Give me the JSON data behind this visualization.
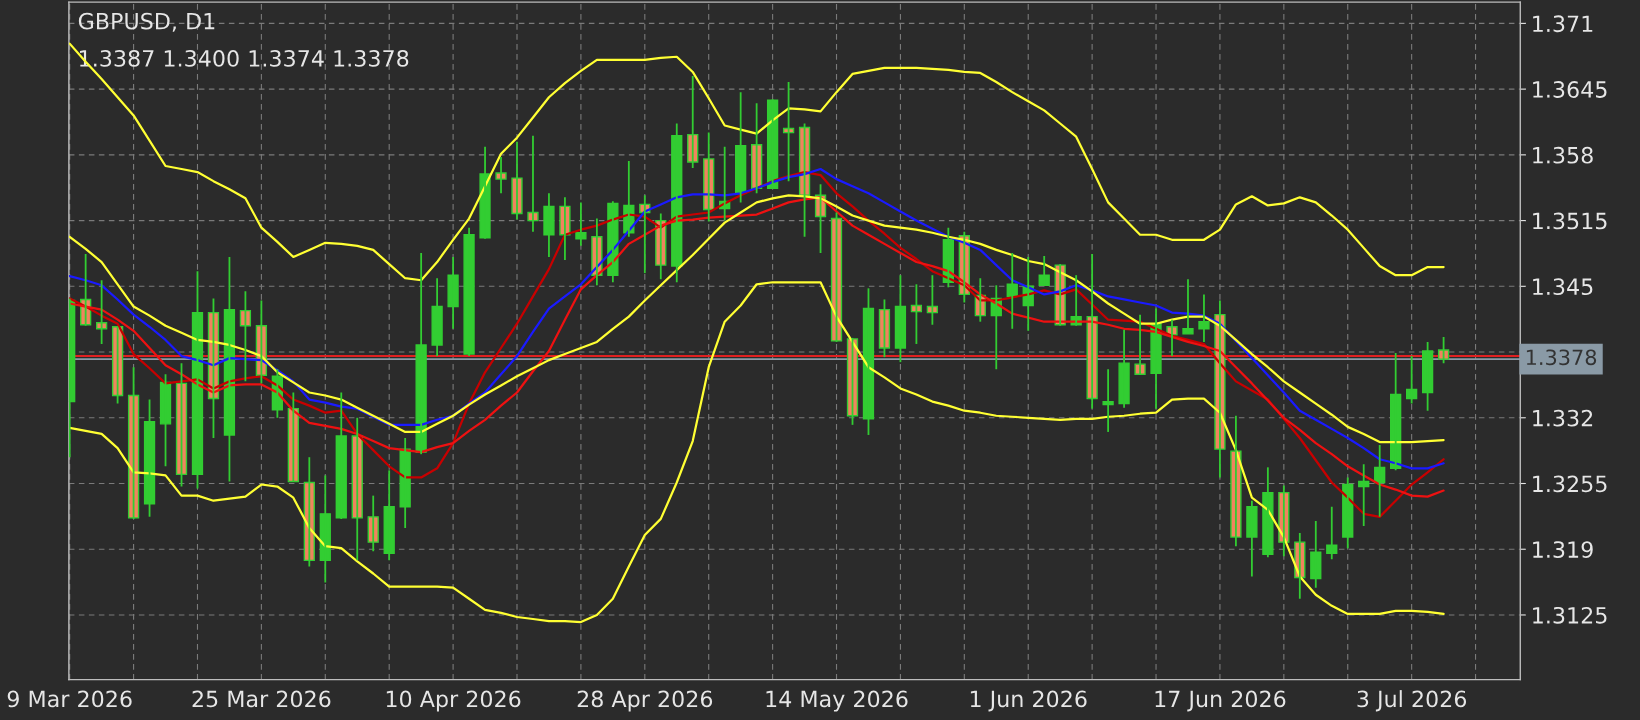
{
  "chart_data": {
    "type": "candlestick",
    "title": "GBPUSD, D1",
    "subtitle": "1.3387 1.3400 1.3374 1.3378",
    "categories": [
      "9 Mar 2026",
      null,
      null,
      null,
      null,
      null,
      null,
      null,
      null,
      null,
      null,
      null,
      "25 Mar 2026",
      null,
      null,
      null,
      null,
      null,
      null,
      null,
      null,
      null,
      null,
      null,
      "10 Apr 2026",
      null,
      null,
      null,
      null,
      null,
      null,
      null,
      null,
      null,
      null,
      null,
      "28 Apr 2026",
      null,
      null,
      null,
      null,
      null,
      null,
      null,
      null,
      null,
      null,
      null,
      "14 May 2026",
      null,
      null,
      null,
      null,
      null,
      null,
      null,
      null,
      null,
      null,
      null,
      "1 Jun 2026",
      null,
      null,
      null,
      null,
      null,
      null,
      null,
      null,
      null,
      null,
      null,
      "17 Jun 2026",
      null,
      null,
      null,
      null,
      null,
      null,
      null,
      null,
      null,
      null,
      null,
      "3 Jul 2026",
      null,
      null
    ],
    "ohlc": [
      [
        1.3336,
        1.3438,
        1.3281,
        1.3436
      ],
      [
        1.3437,
        1.3482,
        1.3411,
        1.3412
      ],
      [
        1.3414,
        1.3456,
        1.3393,
        1.3408
      ],
      [
        1.341,
        1.341,
        1.3334,
        1.3342
      ],
      [
        1.3342,
        1.337,
        1.322,
        1.3221
      ],
      [
        1.3235,
        1.3338,
        1.3222,
        1.3316
      ],
      [
        1.3314,
        1.3363,
        1.3272,
        1.3355
      ],
      [
        1.3354,
        1.3374,
        1.3252,
        1.3264
      ],
      [
        1.3264,
        1.3465,
        1.325,
        1.3424
      ],
      [
        1.3424,
        1.3438,
        1.33,
        1.3339
      ],
      [
        1.3303,
        1.3479,
        1.3257,
        1.3427
      ],
      [
        1.3426,
        1.3445,
        1.3356,
        1.3411
      ],
      [
        1.3411,
        1.3436,
        1.3354,
        1.3362
      ],
      [
        1.3328,
        1.3368,
        1.332,
        1.3361
      ],
      [
        1.3329,
        1.3345,
        1.3257,
        1.3257
      ],
      [
        1.3256,
        1.3281,
        1.3173,
        1.3179
      ],
      [
        1.3179,
        1.3263,
        1.3157,
        1.3225
      ],
      [
        1.3221,
        1.3345,
        1.322,
        1.3302
      ],
      [
        1.3302,
        1.332,
        1.3179,
        1.3221
      ],
      [
        1.3222,
        1.3243,
        1.3188,
        1.3197
      ],
      [
        1.3186,
        1.3268,
        1.3179,
        1.3232
      ],
      [
        1.3232,
        1.33,
        1.3211,
        1.3289
      ],
      [
        1.3286,
        1.3483,
        1.3284,
        1.3392
      ],
      [
        1.3392,
        1.3458,
        1.3381,
        1.343
      ],
      [
        1.343,
        1.3479,
        1.3408,
        1.3461
      ],
      [
        1.3383,
        1.3508,
        1.3381,
        1.3501
      ],
      [
        1.3498,
        1.3588,
        1.3497,
        1.3561
      ],
      [
        1.3562,
        1.3578,
        1.3542,
        1.3556
      ],
      [
        1.3557,
        1.3593,
        1.3516,
        1.3522
      ],
      [
        1.3523,
        1.3599,
        1.3504,
        1.3515
      ],
      [
        1.3501,
        1.3542,
        1.3479,
        1.3529
      ],
      [
        1.3529,
        1.3538,
        1.3476,
        1.3501
      ],
      [
        1.3497,
        1.3533,
        1.349,
        1.3503
      ],
      [
        1.3499,
        1.3517,
        1.3451,
        1.3461
      ],
      [
        1.3461,
        1.3534,
        1.3454,
        1.3532
      ],
      [
        1.3503,
        1.3574,
        1.3499,
        1.353
      ],
      [
        1.3531,
        1.354,
        1.3463,
        1.3523
      ],
      [
        1.3515,
        1.3522,
        1.3457,
        1.3471
      ],
      [
        1.347,
        1.3611,
        1.3454,
        1.3599
      ],
      [
        1.36,
        1.3658,
        1.3567,
        1.3573
      ],
      [
        1.3576,
        1.3602,
        1.3514,
        1.3526
      ],
      [
        1.3527,
        1.3588,
        1.3515,
        1.3534
      ],
      [
        1.3542,
        1.3642,
        1.3533,
        1.3589
      ],
      [
        1.359,
        1.3631,
        1.3542,
        1.3547
      ],
      [
        1.3547,
        1.3635,
        1.3547,
        1.3634
      ],
      [
        1.3606,
        1.3652,
        1.3554,
        1.3602
      ],
      [
        1.3607,
        1.3611,
        1.3499,
        1.354
      ],
      [
        1.354,
        1.3551,
        1.3483,
        1.3519
      ],
      [
        1.3517,
        1.3523,
        1.3395,
        1.3396
      ],
      [
        1.3398,
        1.3399,
        1.3313,
        1.3322
      ],
      [
        1.3319,
        1.3448,
        1.3303,
        1.3428
      ],
      [
        1.3427,
        1.3437,
        1.338,
        1.3389
      ],
      [
        1.3389,
        1.3461,
        1.3375,
        1.343
      ],
      [
        1.3431,
        1.3452,
        1.3393,
        1.3425
      ],
      [
        1.343,
        1.3461,
        1.3412,
        1.3424
      ],
      [
        1.3454,
        1.3508,
        1.3449,
        1.3496
      ],
      [
        1.35,
        1.3504,
        1.3434,
        1.3442
      ],
      [
        1.3441,
        1.3458,
        1.3415,
        1.3421
      ],
      [
        1.3421,
        1.3451,
        1.3368,
        1.3438
      ],
      [
        1.344,
        1.3483,
        1.3408,
        1.3452
      ],
      [
        1.3431,
        1.3479,
        1.3406,
        1.345
      ],
      [
        1.3451,
        1.348,
        1.3451,
        1.3461
      ],
      [
        1.3471,
        1.3472,
        1.3411,
        1.3412
      ],
      [
        1.3412,
        1.3461,
        1.3411,
        1.342
      ],
      [
        1.342,
        1.3482,
        1.3329,
        1.3339
      ],
      [
        1.3333,
        1.3368,
        1.3306,
        1.3336
      ],
      [
        1.3334,
        1.3407,
        1.333,
        1.3374
      ],
      [
        1.3373,
        1.3422,
        1.3363,
        1.3363
      ],
      [
        1.3364,
        1.3428,
        1.3329,
        1.3413
      ],
      [
        1.341,
        1.3417,
        1.3381,
        1.3402
      ],
      [
        1.3403,
        1.3457,
        1.3403,
        1.3408
      ],
      [
        1.3408,
        1.3442,
        1.3395,
        1.3415
      ],
      [
        1.3422,
        1.3436,
        1.3261,
        1.3289
      ],
      [
        1.3287,
        1.3322,
        1.3193,
        1.3202
      ],
      [
        1.3202,
        1.3238,
        1.3163,
        1.3232
      ],
      [
        1.3185,
        1.3271,
        1.3182,
        1.3246
      ],
      [
        1.3246,
        1.3253,
        1.3183,
        1.3197
      ],
      [
        1.3197,
        1.3206,
        1.3141,
        1.3162
      ],
      [
        1.3161,
        1.3218,
        1.3152,
        1.3187
      ],
      [
        1.3186,
        1.3232,
        1.318,
        1.3194
      ],
      [
        1.3202,
        1.3261,
        1.3191,
        1.3254
      ],
      [
        1.3252,
        1.3274,
        1.3213,
        1.3257
      ],
      [
        1.3256,
        1.3293,
        1.3222,
        1.3271
      ],
      [
        1.327,
        1.3384,
        1.3268,
        1.3343
      ],
      [
        1.3339,
        1.3381,
        1.3334,
        1.3348
      ],
      [
        1.3345,
        1.3395,
        1.3327,
        1.3386
      ],
      [
        1.3387,
        1.34,
        1.3374,
        1.3378
      ]
    ],
    "colors": [
      "#32cd32",
      "#f0845e",
      "#f0845e",
      "#f0845e",
      "#f0845e",
      "#32cd32",
      "#32cd32",
      "#f0845e",
      "#32cd32",
      "#f0845e",
      "#32cd32",
      "#f0845e",
      "#f0845e",
      "#32cd32",
      "#f0845e",
      "#f0845e",
      "#32cd32",
      "#32cd32",
      "#f0845e",
      "#f0845e",
      "#32cd32",
      "#32cd32",
      "#32cd32",
      "#32cd32",
      "#32cd32",
      "#32cd32",
      "#32cd32",
      "#f0845e",
      "#f0845e",
      "#f0845e",
      "#32cd32",
      "#f0845e",
      "#32cd32",
      "#f0845e",
      "#32cd32",
      "#32cd32",
      "#f0845e",
      "#f0845e",
      "#32cd32",
      "#f0845e",
      "#f0845e",
      "#32cd32",
      "#32cd32",
      "#f0845e",
      "#32cd32",
      "#f0845e",
      "#f0845e",
      "#f0845e",
      "#f0845e",
      "#f0845e",
      "#32cd32",
      "#f0845e",
      "#32cd32",
      "#f0845e",
      "#f0845e",
      "#32cd32",
      "#f0845e",
      "#f0845e",
      "#32cd32",
      "#32cd32",
      "#32cd32",
      "#32cd32",
      "#f0845e",
      "#32cd32",
      "#f0845e",
      "#32cd32",
      "#32cd32",
      "#f0845e",
      "#32cd32",
      "#f0845e",
      "#32cd32",
      "#32cd32",
      "#f0845e",
      "#f0845e",
      "#32cd32",
      "#32cd32",
      "#f0845e",
      "#f0845e",
      "#32cd32",
      "#32cd32",
      "#32cd32",
      "#32cd32",
      "#32cd32",
      "#32cd32",
      "#32cd32",
      "#32cd32",
      "#f0845e"
    ],
    "series": [
      {
        "type": "line",
        "color": "#ffff33",
        "values": [
          1.369,
          1.3672,
          1.3655,
          1.3637,
          1.3619,
          1.3594,
          1.3569,
          1.3566,
          1.3563,
          1.3554,
          1.3546,
          1.3537,
          1.3508,
          1.3494,
          1.3479,
          1.3486,
          1.3493,
          1.3492,
          1.349,
          1.3486,
          1.3472,
          1.3458,
          1.3456,
          1.3474,
          1.3496,
          1.3517,
          1.3549,
          1.3581,
          1.3597,
          1.3617,
          1.3637,
          1.3651,
          1.3663,
          1.3674,
          1.3674,
          1.3674,
          1.3674,
          1.3676,
          1.3677,
          1.3662,
          1.3636,
          1.3609,
          1.3605,
          1.3601,
          1.3614,
          1.3626,
          1.3625,
          1.3623,
          1.3642,
          1.366,
          1.3663,
          1.3666,
          1.3666,
          1.3666,
          1.3665,
          1.3664,
          1.3662,
          1.3661,
          1.3652,
          1.3642,
          1.3633,
          1.3624,
          1.3611,
          1.3598,
          1.3566,
          1.3533,
          1.3517,
          1.3501,
          1.3501,
          1.3496,
          1.3496,
          1.3496,
          1.3506,
          1.3531,
          1.3539,
          1.353,
          1.3532,
          1.3538,
          1.3533,
          1.352,
          1.3506,
          1.3488,
          1.347,
          1.3461,
          1.3461,
          1.3469,
          1.3469
        ]
      },
      {
        "type": "line",
        "color": "#ffff33",
        "values": [
          1.3499,
          1.3487,
          1.3474,
          1.3452,
          1.343,
          1.3421,
          1.3411,
          1.3404,
          1.3397,
          1.3395,
          1.3392,
          1.3387,
          1.3381,
          1.3365,
          1.3355,
          1.3345,
          1.3342,
          1.3338,
          1.333,
          1.3322,
          1.3314,
          1.3306,
          1.3306,
          1.3314,
          1.3322,
          1.3333,
          1.3343,
          1.3352,
          1.3361,
          1.3369,
          1.3377,
          1.3383,
          1.3389,
          1.3395,
          1.3408,
          1.342,
          1.3436,
          1.3451,
          1.3466,
          1.3481,
          1.3497,
          1.3513,
          1.3523,
          1.3533,
          1.3537,
          1.354,
          1.3539,
          1.3537,
          1.3529,
          1.352,
          1.3515,
          1.351,
          1.3508,
          1.3506,
          1.3503,
          1.3499,
          1.3496,
          1.3492,
          1.3486,
          1.3481,
          1.3475,
          1.3472,
          1.3464,
          1.3456,
          1.3445,
          1.3433,
          1.3423,
          1.3413,
          1.3413,
          1.3417,
          1.342,
          1.342,
          1.3411,
          1.3397,
          1.3383,
          1.337,
          1.3356,
          1.3345,
          1.3334,
          1.3323,
          1.3311,
          1.3304,
          1.3296,
          1.3296,
          1.3296,
          1.3297,
          1.3298
        ]
      },
      {
        "type": "line",
        "color": "#ffff33",
        "values": [
          1.331,
          1.3307,
          1.3304,
          1.329,
          1.3266,
          1.3265,
          1.3263,
          1.3243,
          1.3243,
          1.3238,
          1.324,
          1.3242,
          1.3254,
          1.3252,
          1.3241,
          1.3211,
          1.3193,
          1.3191,
          1.3178,
          1.3166,
          1.3153,
          1.3153,
          1.3153,
          1.3153,
          1.3152,
          1.3141,
          1.313,
          1.3127,
          1.3123,
          1.3121,
          1.3119,
          1.3119,
          1.3118,
          1.3125,
          1.3141,
          1.3173,
          1.3204,
          1.322,
          1.3256,
          1.3297,
          1.337,
          1.3415,
          1.3431,
          1.3452,
          1.3454,
          1.3454,
          1.3454,
          1.3454,
          1.342,
          1.3395,
          1.337,
          1.336,
          1.3349,
          1.3343,
          1.3336,
          1.3332,
          1.3327,
          1.3325,
          1.3322,
          1.3321,
          1.332,
          1.3319,
          1.3318,
          1.3319,
          1.3319,
          1.3321,
          1.3322,
          1.3324,
          1.3325,
          1.3338,
          1.3339,
          1.3339,
          1.3325,
          1.3288,
          1.3241,
          1.3229,
          1.3202,
          1.3163,
          1.3145,
          1.3134,
          1.3126,
          1.3126,
          1.3126,
          1.3129,
          1.3129,
          1.3128,
          1.3126
        ]
      },
      {
        "type": "line",
        "color": "#1a1aff",
        "values": [
          1.346,
          1.3456,
          1.3451,
          1.3437,
          1.3422,
          1.341,
          1.3397,
          1.3381,
          1.3377,
          1.3372,
          1.3379,
          1.3378,
          1.3377,
          1.3367,
          1.3356,
          1.3338,
          1.3335,
          1.3331,
          1.3329,
          1.3321,
          1.3313,
          1.3313,
          1.3313,
          1.3318,
          1.3322,
          1.3334,
          1.3345,
          1.3363,
          1.3381,
          1.3405,
          1.3428,
          1.344,
          1.3452,
          1.3469,
          1.3486,
          1.3505,
          1.3524,
          1.3531,
          1.3538,
          1.3541,
          1.3541,
          1.354,
          1.3542,
          1.3547,
          1.3553,
          1.3558,
          1.3561,
          1.3566,
          1.3556,
          1.3549,
          1.3542,
          1.3533,
          1.3524,
          1.3515,
          1.3507,
          1.3499,
          1.3493,
          1.3486,
          1.3471,
          1.3456,
          1.3449,
          1.3442,
          1.3445,
          1.3451,
          1.3446,
          1.344,
          1.3437,
          1.3434,
          1.3431,
          1.3424,
          1.3423,
          1.3421,
          1.3413,
          1.3396,
          1.3379,
          1.3362,
          1.3345,
          1.3327,
          1.3318,
          1.3309,
          1.33,
          1.329,
          1.3279,
          1.3275,
          1.327,
          1.327,
          1.3275
        ]
      },
      {
        "type": "line",
        "color": "#ee1111",
        "values": [
          1.3433,
          1.343,
          1.3427,
          1.3417,
          1.3406,
          1.3389,
          1.3372,
          1.3363,
          1.3353,
          1.3345,
          1.3352,
          1.3353,
          1.3353,
          1.3345,
          1.3327,
          1.3315,
          1.3312,
          1.3309,
          1.3304,
          1.3297,
          1.329,
          1.3288,
          1.3286,
          1.3291,
          1.3295,
          1.3307,
          1.3318,
          1.3332,
          1.3345,
          1.3366,
          1.3386,
          1.3417,
          1.3447,
          1.3461,
          1.3474,
          1.3492,
          1.3501,
          1.351,
          1.3515,
          1.3516,
          1.3518,
          1.3519,
          1.352,
          1.3521,
          1.3527,
          1.3533,
          1.3536,
          1.3538,
          1.3524,
          1.351,
          1.3501,
          1.3492,
          1.3483,
          1.3474,
          1.347,
          1.3465,
          1.3454,
          1.3442,
          1.3433,
          1.3423,
          1.3419,
          1.3415,
          1.3415,
          1.3415,
          1.3415,
          1.3412,
          1.3408,
          1.3407,
          1.3405,
          1.34,
          1.3395,
          1.3391,
          1.3386,
          1.337,
          1.3354,
          1.3337,
          1.332,
          1.3308,
          1.3295,
          1.3284,
          1.3272,
          1.3263,
          1.3254,
          1.3249,
          1.3243,
          1.3242,
          1.3248
        ]
      },
      {
        "type": "line",
        "color": "#c80000",
        "values": [
          1.3438,
          1.343,
          1.3421,
          1.3413,
          1.3383,
          1.3369,
          1.3354,
          1.3356,
          1.3358,
          1.3349,
          1.3356,
          1.3359,
          1.3361,
          1.3352,
          1.3338,
          1.3332,
          1.3325,
          1.3327,
          1.3304,
          1.3288,
          1.3272,
          1.3261,
          1.3261,
          1.327,
          1.3295,
          1.3334,
          1.3365,
          1.3389,
          1.3413,
          1.344,
          1.3467,
          1.3501,
          1.3506,
          1.351,
          1.3516,
          1.3521,
          1.3519,
          1.3508,
          1.3519,
          1.3521,
          1.3523,
          1.3532,
          1.354,
          1.3547,
          1.3554,
          1.3559,
          1.3563,
          1.356,
          1.3542,
          1.3529,
          1.3515,
          1.3502,
          1.3488,
          1.3477,
          1.3465,
          1.3458,
          1.3451,
          1.3436,
          1.3436,
          1.3439,
          1.3442,
          1.3446,
          1.3442,
          1.3447,
          1.3432,
          1.3417,
          1.3416,
          1.3415,
          1.3408,
          1.3401,
          1.3397,
          1.3393,
          1.3374,
          1.3356,
          1.3347,
          1.3338,
          1.3319,
          1.33,
          1.3278,
          1.3256,
          1.3241,
          1.3225,
          1.3222,
          1.3238,
          1.3254,
          1.3266,
          1.3279
        ]
      }
    ],
    "ref_lines": [
      {
        "axis": "y",
        "value": 1.3381,
        "color": "#e02020",
        "line_style": "solid"
      },
      {
        "axis": "y",
        "value": 1.3378,
        "label": "1.3378",
        "color": "#8a9aa6",
        "line_style": "solid"
      }
    ],
    "ylim": [
      1.3061,
      1.3731
    ],
    "yticks": [
      1.3125,
      1.319,
      1.3255,
      1.332,
      {
        "value": 1.3385,
        "label": null
      },
      1.345,
      1.3515,
      1.358,
      1.3645,
      1.371
    ],
    "grid": true,
    "legend": false
  }
}
